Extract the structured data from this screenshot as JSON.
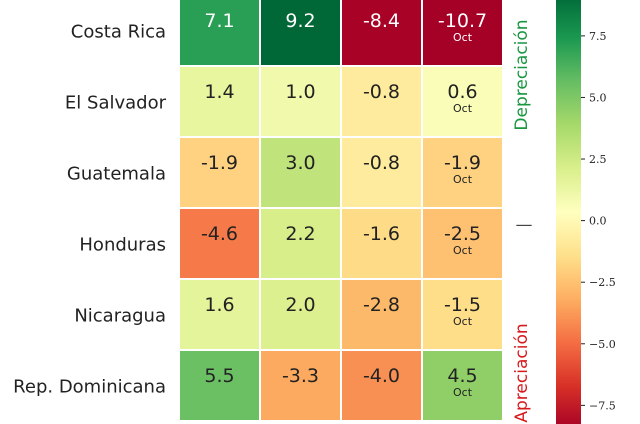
{
  "chart_data": {
    "type": "heatmap",
    "rows": [
      "Costa Rica",
      "El Salvador",
      "Guatemala",
      "Honduras",
      "Nicaragua",
      "Rep. Dominicana"
    ],
    "cells": [
      [
        {
          "value": 7.1,
          "label": "7.1",
          "note": ""
        },
        {
          "value": 9.2,
          "label": "9.2",
          "note": ""
        },
        {
          "value": -8.4,
          "label": "-8.4",
          "note": ""
        },
        {
          "value": -10.7,
          "label": "-10.7",
          "note": "Oct"
        }
      ],
      [
        {
          "value": 1.4,
          "label": "1.4",
          "note": ""
        },
        {
          "value": 1.0,
          "label": "1.0",
          "note": ""
        },
        {
          "value": -0.8,
          "label": "-0.8",
          "note": ""
        },
        {
          "value": 0.6,
          "label": "0.6",
          "note": "Oct"
        }
      ],
      [
        {
          "value": -1.9,
          "label": "-1.9",
          "note": ""
        },
        {
          "value": 3.0,
          "label": "3.0",
          "note": ""
        },
        {
          "value": -0.8,
          "label": "-0.8",
          "note": ""
        },
        {
          "value": -1.9,
          "label": "-1.9",
          "note": "Oct"
        }
      ],
      [
        {
          "value": -4.6,
          "label": "-4.6",
          "note": ""
        },
        {
          "value": 2.2,
          "label": "2.2",
          "note": ""
        },
        {
          "value": -1.6,
          "label": "-1.6",
          "note": ""
        },
        {
          "value": -2.5,
          "label": "-2.5",
          "note": "Oct"
        }
      ],
      [
        {
          "value": 1.6,
          "label": "1.6",
          "note": ""
        },
        {
          "value": 2.0,
          "label": "2.0",
          "note": ""
        },
        {
          "value": -2.8,
          "label": "-2.8",
          "note": ""
        },
        {
          "value": -1.5,
          "label": "-1.5",
          "note": "Oct"
        }
      ],
      [
        {
          "value": 5.5,
          "label": "5.5",
          "note": ""
        },
        {
          "value": -3.3,
          "label": "-3.3",
          "note": ""
        },
        {
          "value": -4.0,
          "label": "-4.0",
          "note": ""
        },
        {
          "value": 4.5,
          "label": "4.5",
          "note": "Oct"
        }
      ]
    ],
    "colormap": "RdYlGn",
    "vmin": -8.5,
    "vmax": 9.2,
    "colorbar_ticks": [
      "7.5",
      "5.0",
      "2.5",
      "0.0",
      "−2.5",
      "−5.0",
      "−7.5"
    ],
    "colorbar_tick_values": [
      7.5,
      5.0,
      2.5,
      0.0,
      -2.5,
      -5.0,
      -7.5
    ],
    "side_labels": {
      "top": {
        "text": "Depreciación",
        "color": "#1a9641"
      },
      "middle": "—",
      "bottom": {
        "text": "Apreciación",
        "color": "#d7191c"
      }
    },
    "grid": false,
    "legend": "right"
  }
}
